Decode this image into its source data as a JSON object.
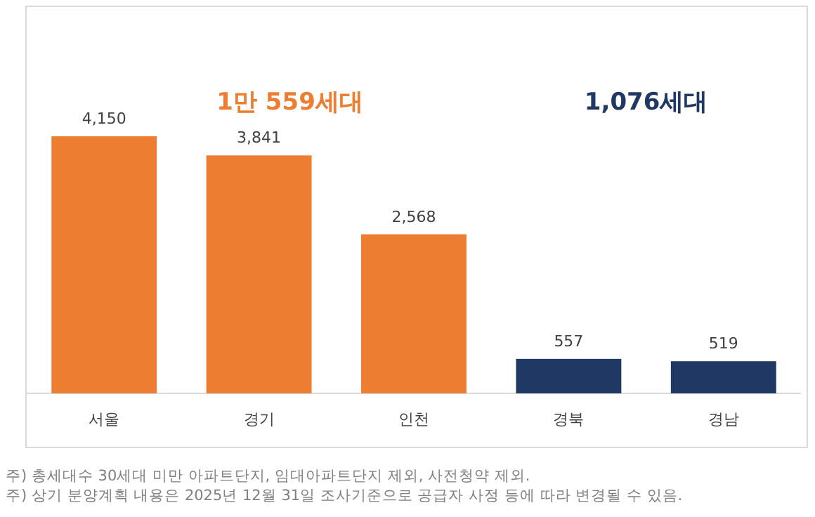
{
  "chart_data": {
    "type": "bar",
    "categories": [
      "서울",
      "경기",
      "인천",
      "경북",
      "경남"
    ],
    "values": [
      4150,
      3841,
      2568,
      557,
      519
    ],
    "colors": [
      "#ed7d31",
      "#ed7d31",
      "#ed7d31",
      "#203864",
      "#203864"
    ],
    "value_labels": [
      "4,150",
      "3,841",
      "2,568",
      "557",
      "519"
    ],
    "annotations": [
      "1만 559세대",
      "1,076세대",
      "주) 총세대수 30세대 미만 아파트단지, 임대아파트단지 제외, 사전청약 제외.",
      "주) 상기 분양계획 내용은 2025년 12월 31일 조사기준으로 공급자 사정 등에 따라 변경될 수 있음."
    ]
  }
}
